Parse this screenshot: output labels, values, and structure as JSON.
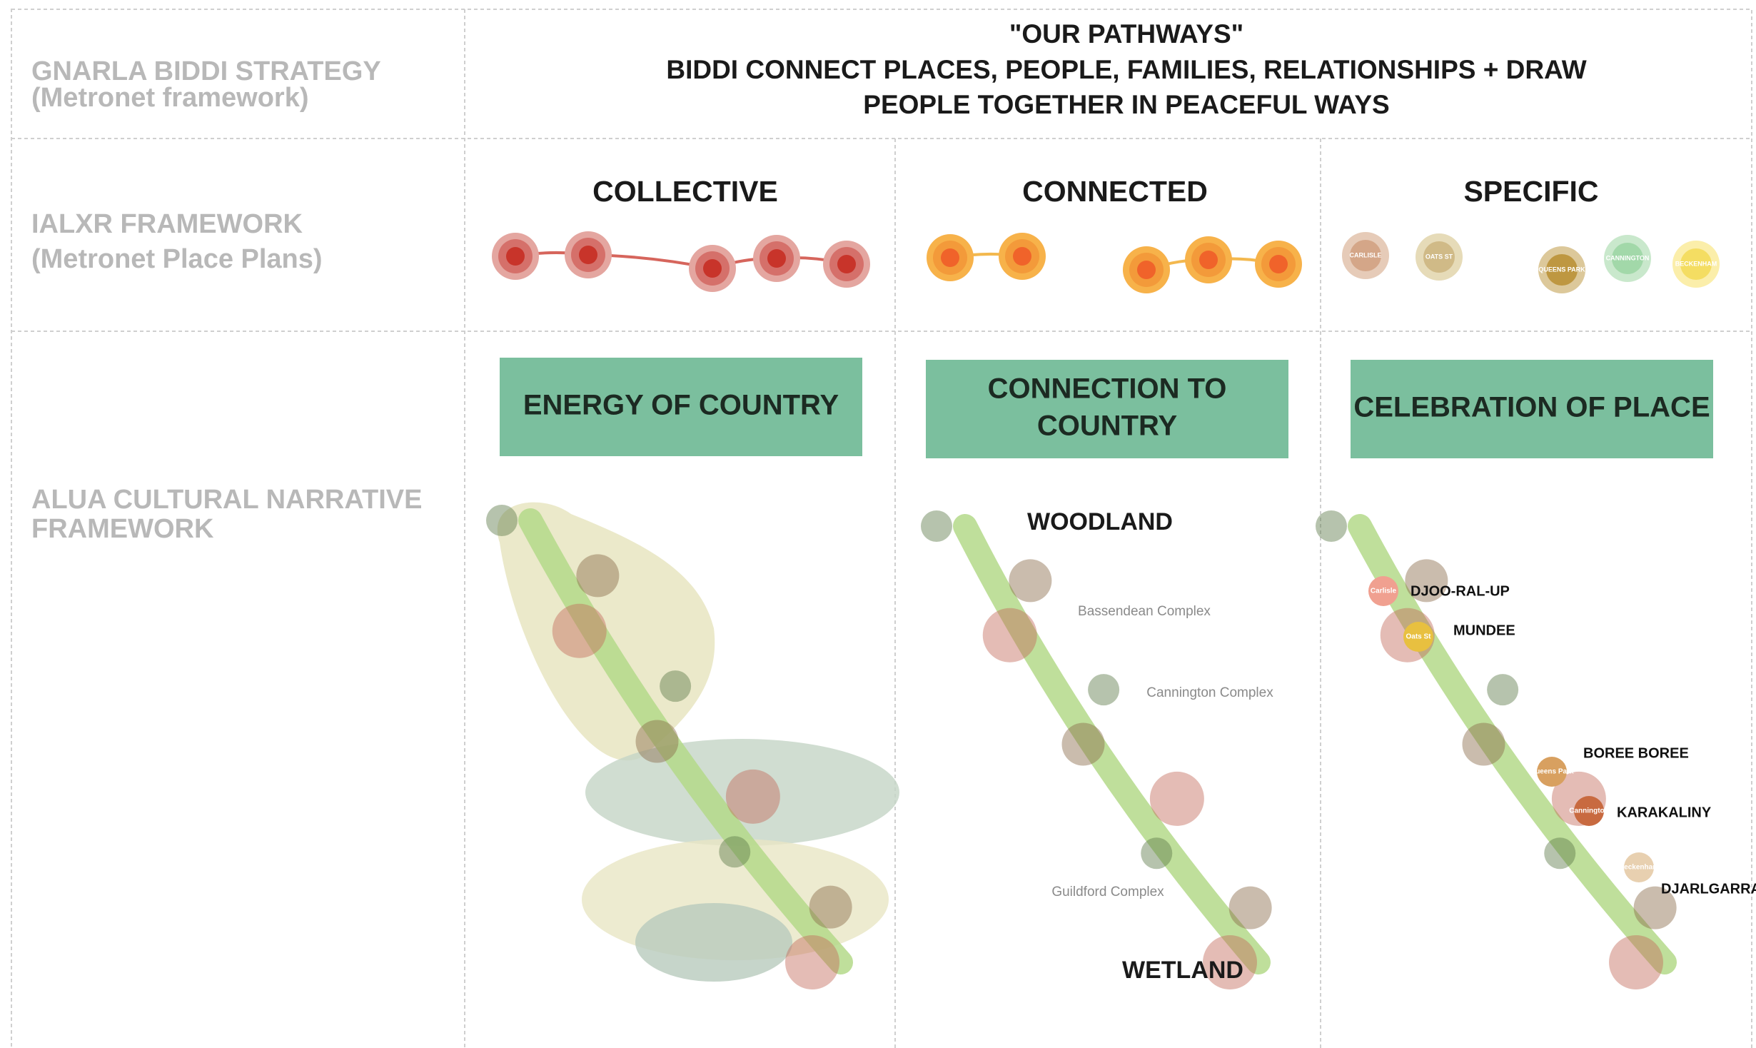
{
  "left_labels": {
    "strategy": [
      "GNARLA BIDDI STRATEGY",
      "(Metronet framework)"
    ],
    "framework": [
      "IALXR FRAMEWORK",
      "(Metronet Place Plans)"
    ],
    "narrative": [
      "ALUA CULTURAL NARRATIVE",
      "FRAMEWORK"
    ]
  },
  "header": {
    "title_lines": [
      "\"OUR PATHWAYS\"",
      "BIDDI CONNECT PLACES, PEOPLE, FAMILIES, RELATIONSHIPS + DRAW",
      "PEOPLE TOGETHER IN PEACEFUL WAYS"
    ]
  },
  "columns": [
    {
      "title": "COLLECTIVE",
      "theme": [
        "ENERGY OF COUNTRY"
      ],
      "station_labels": [],
      "map_labels": [],
      "dot_labels": []
    },
    {
      "title": "CONNECTED",
      "theme": [
        "CONNECTION TO",
        "COUNTRY"
      ],
      "station_labels": [],
      "map_labels": [
        "WOODLAND",
        "Bassendean Complex",
        "Cannington Complex",
        "Guildford Complex",
        "WETLAND"
      ],
      "dot_labels": []
    },
    {
      "title": "SPECIFIC",
      "theme": [
        "CELEBRATION OF PLACE"
      ],
      "station_labels": [
        "CARLISLE",
        "OATS ST",
        "QUEENS PARK",
        "CANNINGTON",
        "BECKENHAM"
      ],
      "map_labels": [
        "DJOO-RAL-UP",
        "MUNDEE",
        "BOREE BOREE",
        "KARAKALINY",
        "DJARLGARRA"
      ],
      "dot_labels": [
        "Carlisle",
        "Oats St",
        "Queens Park",
        "Cannington",
        "Beckenham"
      ]
    }
  ]
}
